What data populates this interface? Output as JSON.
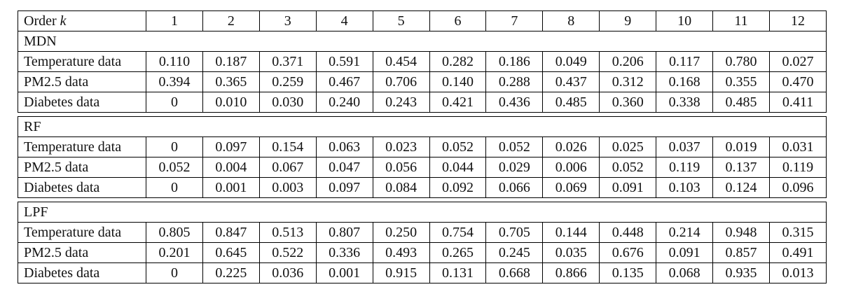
{
  "colors": {
    "border": "#000000",
    "text": "#111111",
    "background": "#ffffff"
  },
  "table": {
    "header": {
      "label_text": "Order",
      "label_math": "k",
      "orders": [
        "1",
        "2",
        "3",
        "4",
        "5",
        "6",
        "7",
        "8",
        "9",
        "10",
        "11",
        "12"
      ]
    },
    "sections": [
      {
        "name": "MDN",
        "rows": [
          {
            "label": "Temperature data",
            "values": [
              "0.110",
              "0.187",
              "0.371",
              "0.591",
              "0.454",
              "0.282",
              "0.186",
              "0.049",
              "0.206",
              "0.117",
              "0.780",
              "0.027"
            ]
          },
          {
            "label": "PM2.5 data",
            "values": [
              "0.394",
              "0.365",
              "0.259",
              "0.467",
              "0.706",
              "0.140",
              "0.288",
              "0.437",
              "0.312",
              "0.168",
              "0.355",
              "0.470"
            ]
          },
          {
            "label": "Diabetes data",
            "values": [
              "0",
              "0.010",
              "0.030",
              "0.240",
              "0.243",
              "0.421",
              "0.436",
              "0.485",
              "0.360",
              "0.338",
              "0.485",
              "0.411"
            ]
          }
        ]
      },
      {
        "name": "RF",
        "rows": [
          {
            "label": "Temperature data",
            "values": [
              "0",
              "0.097",
              "0.154",
              "0.063",
              "0.023",
              "0.052",
              "0.052",
              "0.026",
              "0.025",
              "0.037",
              "0.019",
              "0.031"
            ]
          },
          {
            "label": "PM2.5 data",
            "values": [
              "0.052",
              "0.004",
              "0.067",
              "0.047",
              "0.056",
              "0.044",
              "0.029",
              "0.006",
              "0.052",
              "0.119",
              "0.137",
              "0.119"
            ]
          },
          {
            "label": "Diabetes data",
            "values": [
              "0",
              "0.001",
              "0.003",
              "0.097",
              "0.084",
              "0.092",
              "0.066",
              "0.069",
              "0.091",
              "0.103",
              "0.124",
              "0.096"
            ]
          }
        ]
      },
      {
        "name": "LPF",
        "rows": [
          {
            "label": "Temperature data",
            "values": [
              "0.805",
              "0.847",
              "0.513",
              "0.807",
              "0.250",
              "0.754",
              "0.705",
              "0.144",
              "0.448",
              "0.214",
              "0.948",
              "0.315"
            ]
          },
          {
            "label": "PM2.5 data",
            "values": [
              "0.201",
              "0.645",
              "0.522",
              "0.336",
              "0.493",
              "0.265",
              "0.245",
              "0.035",
              "0.676",
              "0.091",
              "0.857",
              "0.491"
            ]
          },
          {
            "label": "Diabetes data",
            "values": [
              "0",
              "0.225",
              "0.036",
              "0.001",
              "0.915",
              "0.131",
              "0.668",
              "0.866",
              "0.135",
              "0.068",
              "0.935",
              "0.013"
            ]
          }
        ]
      }
    ]
  }
}
